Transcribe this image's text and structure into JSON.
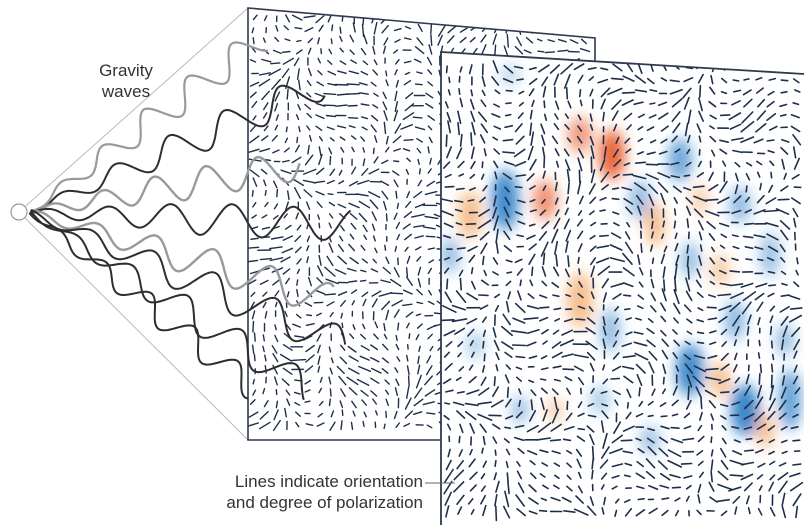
{
  "labels": {
    "gravity_waves": [
      "Gravity",
      "waves"
    ],
    "polarization": [
      "Lines indicate orientation",
      "and degree of polarization"
    ]
  },
  "colors": {
    "frame": "#2f3a4f",
    "tick": "#1f2f4a",
    "wave": "#2e2e2e",
    "wave_faded": "#9a9a9a",
    "blue_spot": "#1f77c4",
    "red_spot": "#e8521c",
    "orange_spot": "#f2a25c",
    "cone": "#bbbbbb"
  }
}
